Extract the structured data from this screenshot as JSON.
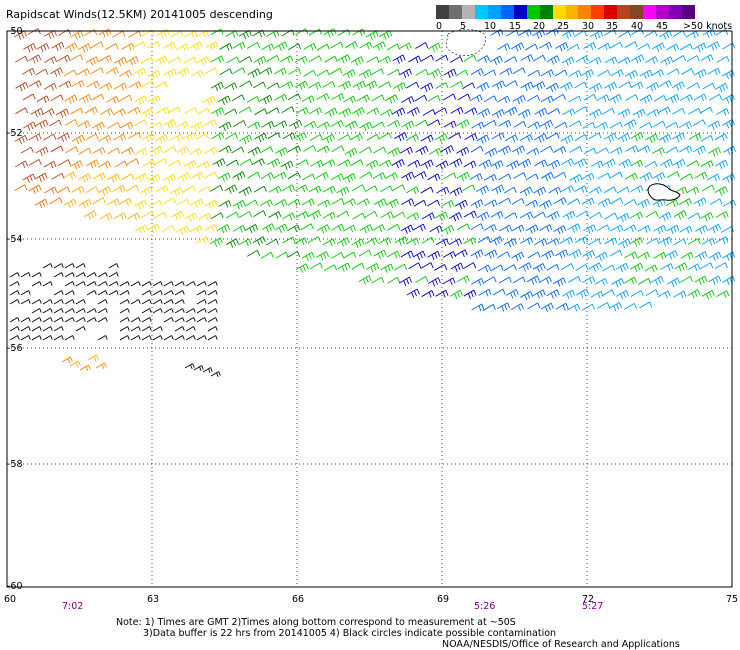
{
  "title": "Rapidscat Winds(12.5KM) 20141005 descending",
  "legend": {
    "colors": [
      "#404040",
      "#6e6e6e",
      "#b4b4b4",
      "#00c8ff",
      "#00a0ff",
      "#0064ff",
      "#0000c8",
      "#00c800",
      "#008200",
      "#ffdc00",
      "#ffb400",
      "#ff8200",
      "#ff3c00",
      "#dc0000",
      "#b4461e",
      "#824628",
      "#ff00ff",
      "#b400c8",
      "#8200b4",
      "#5a0082"
    ],
    "ticks": [
      "0",
      "5",
      "10",
      "15",
      "20",
      "25",
      "30",
      "35",
      "40",
      "45",
      ">50 knots"
    ]
  },
  "map": {
    "lon_min": 60,
    "lon_max": 75,
    "lat_top": -50,
    "lat_bottom": -60,
    "lat_labels": [
      "-50",
      "-52",
      "-54",
      "-56",
      "-58",
      "-60"
    ],
    "lon_labels": [
      "60",
      "63",
      "66",
      "69",
      "72",
      "75"
    ],
    "times": [
      {
        "label": "7:02",
        "lon": 61.3
      },
      {
        "label": "5:26",
        "lon": 69.9
      },
      {
        "label": "5:27",
        "lon": 72.2
      }
    ]
  },
  "notes": {
    "line1": "Note: 1) Times are GMT 2)Times along bottom correspond to measurement at ~50S",
    "line2": "3)Data buffer is 22 hrs from 20141005 4) Black circles indicate possible contamination",
    "line3": "NOAA/NESDIS/Office of Research and Applications"
  }
}
